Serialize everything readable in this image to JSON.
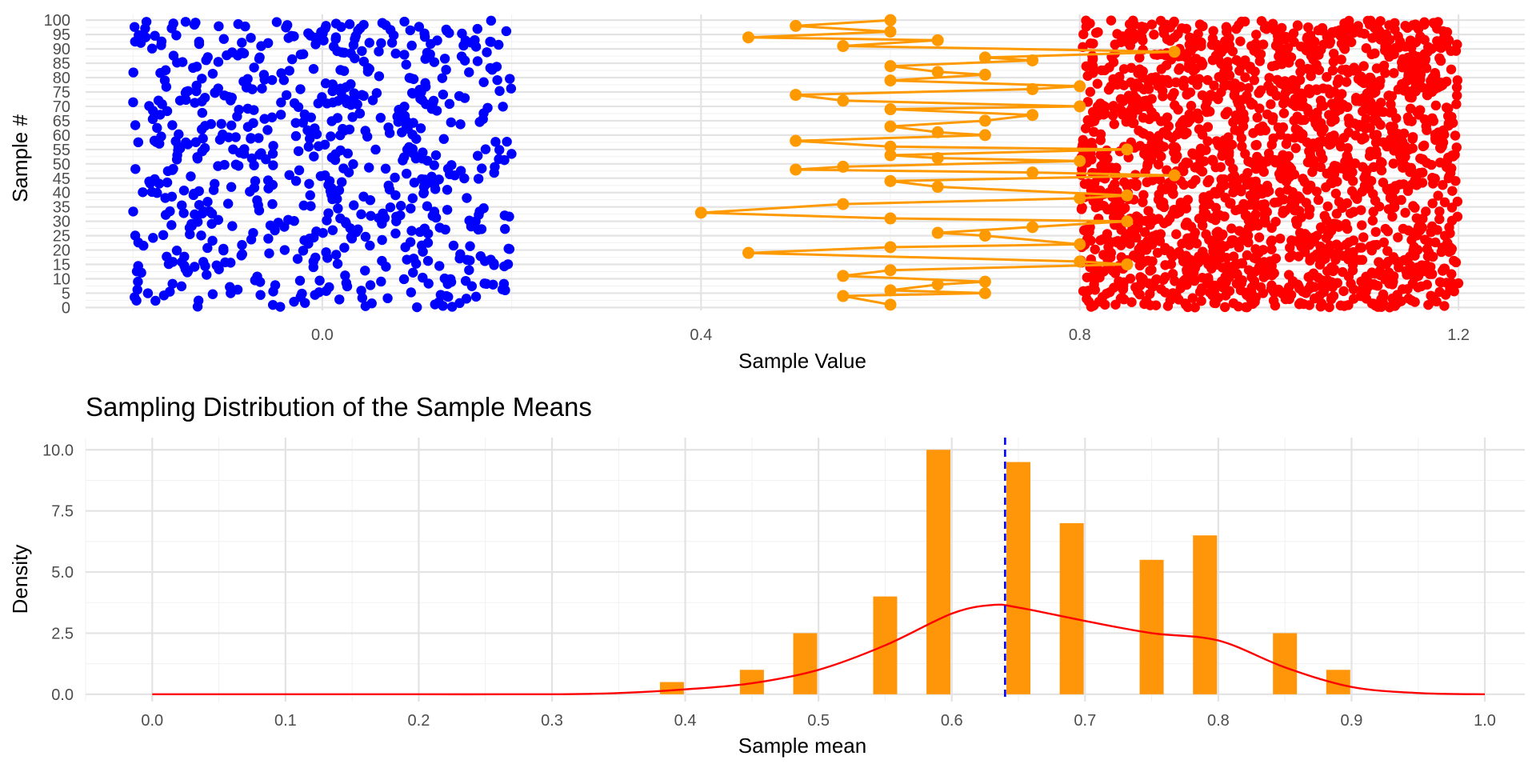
{
  "chart_data": [
    {
      "type": "scatter",
      "title": "",
      "xlabel": "Sample Value",
      "ylabel": "Sample #",
      "xlim": [
        -0.25,
        1.27
      ],
      "ylim": [
        -1,
        102
      ],
      "x_ticks": [
        "0.0",
        "0.4",
        "0.8",
        "1.2"
      ],
      "y_ticks": [
        "0",
        "5",
        "10",
        "15",
        "20",
        "25",
        "30",
        "35",
        "40",
        "45",
        "50",
        "55",
        "60",
        "65",
        "70",
        "75",
        "80",
        "85",
        "90",
        "95",
        "100"
      ],
      "grid": true,
      "legend": "none",
      "series": [
        {
          "color": "#0000ff",
          "x_range": [
            -0.2,
            0.2
          ],
          "y_range": [
            0,
            100
          ],
          "count": 700,
          "description": "uniform scatter",
          "seed": 7
        },
        {
          "color": "#ff0000",
          "x_range": [
            0.8,
            1.2
          ],
          "y_range": [
            0,
            100
          ],
          "count": 1900,
          "description": "uniform scatter",
          "seed": 13
        },
        {
          "color": "#ff9900",
          "description": "sample means connected by line",
          "points": [
            [
              0.6,
              1
            ],
            [
              0.55,
              4
            ],
            [
              0.7,
              5
            ],
            [
              0.6,
              6
            ],
            [
              0.65,
              8
            ],
            [
              0.7,
              9
            ],
            [
              0.55,
              11
            ],
            [
              0.6,
              13
            ],
            [
              0.85,
              15
            ],
            [
              0.8,
              16
            ],
            [
              0.45,
              19
            ],
            [
              0.6,
              21
            ],
            [
              0.8,
              22
            ],
            [
              0.7,
              25
            ],
            [
              0.65,
              26
            ],
            [
              0.75,
              28
            ],
            [
              0.85,
              30
            ],
            [
              0.6,
              31
            ],
            [
              0.4,
              33
            ],
            [
              0.55,
              36
            ],
            [
              0.8,
              38
            ],
            [
              0.85,
              39
            ],
            [
              0.65,
              42
            ],
            [
              0.6,
              44
            ],
            [
              0.9,
              46
            ],
            [
              0.75,
              47
            ],
            [
              0.5,
              48
            ],
            [
              0.55,
              49
            ],
            [
              0.8,
              51
            ],
            [
              0.65,
              52
            ],
            [
              0.6,
              53
            ],
            [
              0.85,
              55
            ],
            [
              0.6,
              56
            ],
            [
              0.5,
              58
            ],
            [
              0.7,
              60
            ],
            [
              0.65,
              61
            ],
            [
              0.6,
              63
            ],
            [
              0.7,
              65
            ],
            [
              0.75,
              67
            ],
            [
              0.6,
              69
            ],
            [
              0.8,
              70
            ],
            [
              0.55,
              72
            ],
            [
              0.5,
              74
            ],
            [
              0.75,
              76
            ],
            [
              0.8,
              77
            ],
            [
              0.6,
              79
            ],
            [
              0.7,
              81
            ],
            [
              0.65,
              82
            ],
            [
              0.6,
              84
            ],
            [
              0.75,
              86
            ],
            [
              0.7,
              87
            ],
            [
              0.9,
              89
            ],
            [
              0.55,
              91
            ],
            [
              0.65,
              93
            ],
            [
              0.45,
              94
            ],
            [
              0.6,
              96
            ],
            [
              0.5,
              98
            ],
            [
              0.6,
              100
            ]
          ]
        }
      ]
    },
    {
      "type": "bar",
      "title": "Sampling Distribution of the Sample Means",
      "xlabel": "Sample mean",
      "ylabel": "Density",
      "xlim": [
        -0.05,
        1.03
      ],
      "ylim": [
        -0.3,
        10.5
      ],
      "x_ticks": [
        "0.0",
        "0.1",
        "0.2",
        "0.3",
        "0.4",
        "0.5",
        "0.6",
        "0.7",
        "0.8",
        "0.9",
        "1.0"
      ],
      "y_ticks": [
        "0.0",
        "2.5",
        "5.0",
        "7.5",
        "10.0"
      ],
      "grid": true,
      "legend": "none",
      "bar_color": "#ff9509",
      "bar_width": 0.018,
      "bars": [
        {
          "x": 0.39,
          "density": 0.5
        },
        {
          "x": 0.45,
          "density": 1.0
        },
        {
          "x": 0.49,
          "density": 2.5
        },
        {
          "x": 0.55,
          "density": 4.0
        },
        {
          "x": 0.59,
          "density": 10.0
        },
        {
          "x": 0.65,
          "density": 9.5
        },
        {
          "x": 0.69,
          "density": 7.0
        },
        {
          "x": 0.75,
          "density": 5.5
        },
        {
          "x": 0.79,
          "density": 6.5
        },
        {
          "x": 0.85,
          "density": 2.5
        },
        {
          "x": 0.89,
          "density": 1.0
        }
      ],
      "density_curve": {
        "color": "#ff0000",
        "x": [
          0.0,
          0.1,
          0.2,
          0.3,
          0.35,
          0.4,
          0.45,
          0.5,
          0.55,
          0.6,
          0.63,
          0.65,
          0.7,
          0.75,
          0.8,
          0.85,
          0.9,
          0.95,
          1.0
        ],
        "y": [
          0.0,
          0.0,
          0.0,
          0.0,
          0.05,
          0.2,
          0.45,
          1.0,
          2.0,
          3.3,
          3.65,
          3.55,
          3.0,
          2.5,
          2.2,
          1.1,
          0.3,
          0.05,
          0.0
        ]
      },
      "mean_line": {
        "x": 0.64,
        "color": "#0000ff",
        "style": "dashed"
      }
    }
  ]
}
